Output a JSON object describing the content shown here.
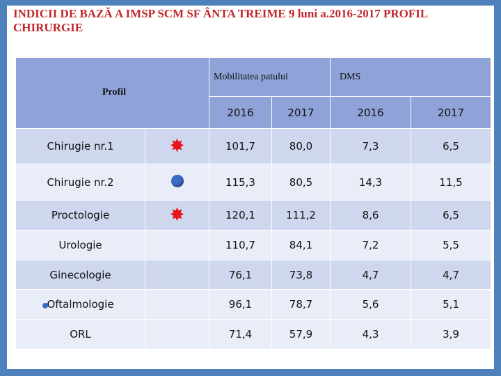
{
  "title": "INDICII DE BAZĂ A IMSP SCM SF ÂNTA TREIME 9 luni a.2016-2017 PROFIL CHIRURGIE",
  "table": {
    "profil_label": "Profil",
    "mobilitate_label": "Mobilitatea patului",
    "dms_label": "DMS",
    "years": [
      "2016",
      "2017",
      "2016",
      "2017"
    ],
    "rows": [
      {
        "profil": "Chirugie nr.1",
        "marker": "red-star",
        "mob_2016": "101,7",
        "mob_2017": "80,0",
        "dms_2016": "7,3",
        "dms_2017": "6,5"
      },
      {
        "profil": "Chirugie nr.2",
        "marker": "blue-dot",
        "mob_2016": "115,3",
        "mob_2017": "80,5",
        "dms_2016": "14,3",
        "dms_2017": "11,5"
      },
      {
        "profil": "Proctologie",
        "marker": "red-star",
        "mob_2016": "120,1",
        "mob_2017": "111,2",
        "dms_2016": "8,6",
        "dms_2017": "6,5"
      },
      {
        "profil": "Urologie",
        "marker": "",
        "mob_2016": "110,7",
        "mob_2017": "84,1",
        "dms_2016": "7,2",
        "dms_2017": "5,5"
      },
      {
        "profil": "Ginecologie",
        "marker": "",
        "mob_2016": "76,1",
        "mob_2017": "73,8",
        "dms_2016": "4,7",
        "dms_2017": "4,7"
      },
      {
        "profil": "Oftalmologie",
        "marker": "",
        "mob_2016": "96,1",
        "mob_2017": "78,7",
        "dms_2016": "5,6",
        "dms_2017": "5,1"
      },
      {
        "profil": "ORL",
        "marker": "",
        "mob_2016": "71,4",
        "mob_2017": "57,9",
        "dms_2016": "4,3",
        "dms_2017": "3,9"
      }
    ]
  },
  "colors": {
    "title": "#c0272d",
    "header": "#8fa3d9",
    "band": "#cfd7ee",
    "light": "#e9edf7",
    "star": "#e8141c",
    "dot": "#3c6bc4"
  }
}
